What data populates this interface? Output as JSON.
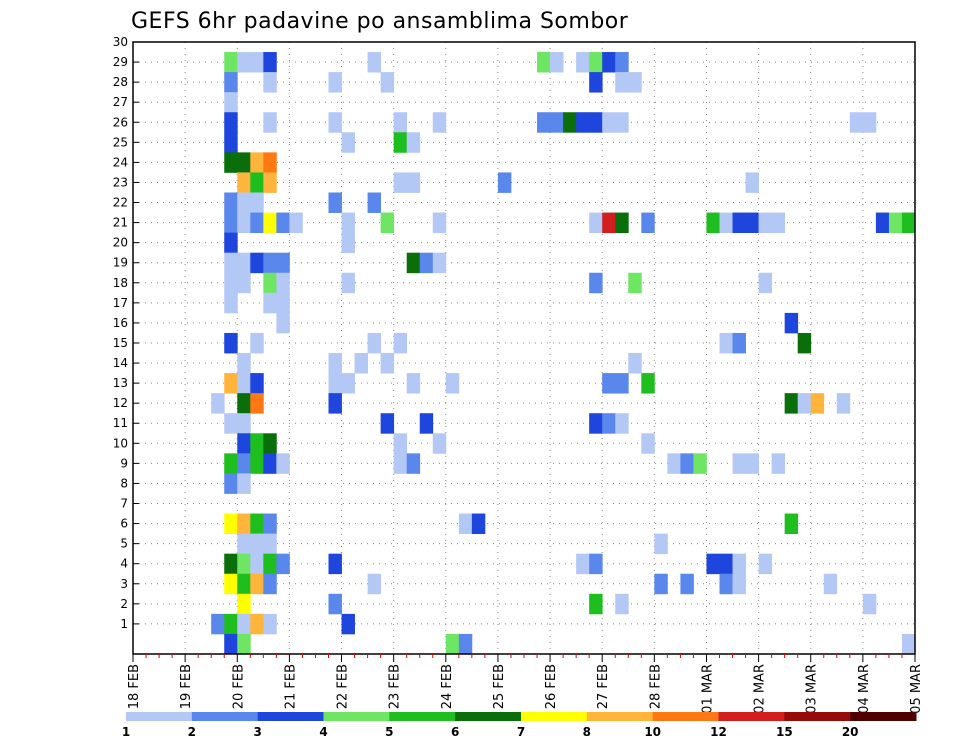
{
  "chart_data": {
    "type": "heatmap",
    "title": "GEFS 6hr padavine po ansamblima Sombor",
    "xlabel": "",
    "ylabel": "",
    "ylim": [
      0,
      30
    ],
    "y_ticks": [
      1,
      2,
      3,
      4,
      5,
      6,
      7,
      8,
      9,
      10,
      11,
      12,
      13,
      14,
      15,
      16,
      17,
      18,
      19,
      20,
      21,
      22,
      23,
      24,
      25,
      26,
      27,
      28,
      29,
      30
    ],
    "x_range_steps": [
      0,
      60
    ],
    "x_date_labels": [
      "18 FEB",
      "19 FEB",
      "20 FEB",
      "21 FEB",
      "22 FEB",
      "23 FEB",
      "24 FEB",
      "25 FEB",
      "26 FEB",
      "27 FEB",
      "28 FEB",
      "01 MAR",
      "02 MAR",
      "03 MAR",
      "04 MAR",
      "05 MAR"
    ],
    "colorbar": {
      "bounds": [
        "1",
        "2",
        "3",
        "4",
        "5",
        "6",
        "7",
        "8",
        "10",
        "12",
        "15",
        "20"
      ],
      "colors": [
        "#b4c8f5",
        "#5a87eb",
        "#1e46dc",
        "#6ee664",
        "#1ebe1e",
        "#0a6e0a",
        "#ffff00",
        "#ffb43c",
        "#ff7814",
        "#d21e1e",
        "#960a0a",
        "#500000"
      ]
    },
    "legend_note": "cells: [x step (6h, 0 = 18 FEB 00z), y member, color class index 1-12]",
    "cells": [
      [
        7,
        29,
        4
      ],
      [
        8,
        29,
        1
      ],
      [
        9,
        29,
        1
      ],
      [
        10,
        29,
        3
      ],
      [
        18,
        29,
        1
      ],
      [
        31,
        29,
        4
      ],
      [
        32,
        29,
        1
      ],
      [
        34,
        29,
        1
      ],
      [
        35,
        29,
        4
      ],
      [
        36,
        29,
        3
      ],
      [
        37,
        29,
        2
      ],
      [
        7,
        28,
        2
      ],
      [
        10,
        28,
        1
      ],
      [
        15,
        28,
        1
      ],
      [
        19,
        28,
        1
      ],
      [
        35,
        28,
        3
      ],
      [
        37,
        28,
        1
      ],
      [
        38,
        28,
        1
      ],
      [
        7,
        27,
        1
      ],
      [
        7,
        26,
        3
      ],
      [
        10,
        26,
        1
      ],
      [
        15,
        26,
        1
      ],
      [
        20,
        26,
        1
      ],
      [
        23,
        26,
        1
      ],
      [
        31,
        26,
        2
      ],
      [
        32,
        26,
        2
      ],
      [
        33,
        26,
        6
      ],
      [
        34,
        26,
        3
      ],
      [
        35,
        26,
        3
      ],
      [
        36,
        26,
        1
      ],
      [
        37,
        26,
        1
      ],
      [
        55,
        26,
        1
      ],
      [
        56,
        26,
        1
      ],
      [
        7,
        25,
        3
      ],
      [
        16,
        25,
        1
      ],
      [
        20,
        25,
        5
      ],
      [
        21,
        25,
        1
      ],
      [
        7,
        24,
        6
      ],
      [
        8,
        24,
        6
      ],
      [
        9,
        24,
        8
      ],
      [
        10,
        24,
        9
      ],
      [
        8,
        23,
        8
      ],
      [
        9,
        23,
        5
      ],
      [
        10,
        23,
        8
      ],
      [
        20,
        23,
        1
      ],
      [
        21,
        23,
        1
      ],
      [
        28,
        23,
        2
      ],
      [
        47,
        23,
        1
      ],
      [
        7,
        22,
        2
      ],
      [
        8,
        22,
        1
      ],
      [
        9,
        22,
        1
      ],
      [
        15,
        22,
        2
      ],
      [
        18,
        22,
        2
      ],
      [
        7,
        21,
        2
      ],
      [
        8,
        21,
        1
      ],
      [
        9,
        21,
        2
      ],
      [
        10,
        21,
        7
      ],
      [
        11,
        21,
        2
      ],
      [
        12,
        21,
        1
      ],
      [
        16,
        21,
        1
      ],
      [
        19,
        21,
        4
      ],
      [
        23,
        21,
        1
      ],
      [
        35,
        21,
        1
      ],
      [
        36,
        21,
        10
      ],
      [
        37,
        21,
        6
      ],
      [
        39,
        21,
        2
      ],
      [
        44,
        21,
        5
      ],
      [
        45,
        21,
        1
      ],
      [
        46,
        21,
        3
      ],
      [
        47,
        21,
        3
      ],
      [
        48,
        21,
        1
      ],
      [
        49,
        21,
        1
      ],
      [
        57,
        21,
        3
      ],
      [
        58,
        21,
        4
      ],
      [
        59,
        21,
        5
      ],
      [
        7,
        20,
        3
      ],
      [
        16,
        20,
        1
      ],
      [
        7,
        19,
        1
      ],
      [
        8,
        19,
        1
      ],
      [
        9,
        19,
        3
      ],
      [
        10,
        19,
        2
      ],
      [
        11,
        19,
        2
      ],
      [
        21,
        19,
        6
      ],
      [
        22,
        19,
        2
      ],
      [
        23,
        19,
        1
      ],
      [
        7,
        18,
        1
      ],
      [
        8,
        18,
        1
      ],
      [
        10,
        18,
        4
      ],
      [
        11,
        18,
        1
      ],
      [
        16,
        18,
        1
      ],
      [
        35,
        18,
        2
      ],
      [
        38,
        18,
        4
      ],
      [
        48,
        18,
        1
      ],
      [
        7,
        17,
        1
      ],
      [
        10,
        17,
        1
      ],
      [
        11,
        17,
        1
      ],
      [
        11,
        16,
        1
      ],
      [
        50,
        16,
        3
      ],
      [
        7,
        15,
        3
      ],
      [
        9,
        15,
        1
      ],
      [
        18,
        15,
        1
      ],
      [
        20,
        15,
        1
      ],
      [
        45,
        15,
        1
      ],
      [
        46,
        15,
        2
      ],
      [
        51,
        15,
        6
      ],
      [
        8,
        14,
        1
      ],
      [
        15,
        14,
        1
      ],
      [
        17,
        14,
        1
      ],
      [
        19,
        14,
        1
      ],
      [
        38,
        14,
        1
      ],
      [
        7,
        13,
        8
      ],
      [
        8,
        13,
        1
      ],
      [
        9,
        13,
        3
      ],
      [
        15,
        13,
        1
      ],
      [
        16,
        13,
        1
      ],
      [
        21,
        13,
        1
      ],
      [
        24,
        13,
        1
      ],
      [
        36,
        13,
        2
      ],
      [
        37,
        13,
        2
      ],
      [
        39,
        13,
        5
      ],
      [
        6,
        12,
        1
      ],
      [
        8,
        12,
        6
      ],
      [
        9,
        12,
        9
      ],
      [
        15,
        12,
        3
      ],
      [
        50,
        12,
        6
      ],
      [
        51,
        12,
        1
      ],
      [
        52,
        12,
        8
      ],
      [
        54,
        12,
        1
      ],
      [
        7,
        11,
        1
      ],
      [
        8,
        11,
        1
      ],
      [
        19,
        11,
        3
      ],
      [
        22,
        11,
        3
      ],
      [
        35,
        11,
        3
      ],
      [
        36,
        11,
        2
      ],
      [
        37,
        11,
        1
      ],
      [
        8,
        10,
        3
      ],
      [
        9,
        10,
        5
      ],
      [
        10,
        10,
        6
      ],
      [
        20,
        10,
        1
      ],
      [
        23,
        10,
        1
      ],
      [
        39,
        10,
        1
      ],
      [
        7,
        9,
        5
      ],
      [
        8,
        9,
        2
      ],
      [
        9,
        9,
        5
      ],
      [
        10,
        9,
        3
      ],
      [
        11,
        9,
        1
      ],
      [
        20,
        9,
        1
      ],
      [
        21,
        9,
        2
      ],
      [
        41,
        9,
        1
      ],
      [
        42,
        9,
        2
      ],
      [
        43,
        9,
        4
      ],
      [
        46,
        9,
        1
      ],
      [
        47,
        9,
        1
      ],
      [
        49,
        9,
        1
      ],
      [
        7,
        8,
        2
      ],
      [
        8,
        8,
        1
      ],
      [
        7,
        6,
        7
      ],
      [
        8,
        6,
        8
      ],
      [
        9,
        6,
        5
      ],
      [
        10,
        6,
        2
      ],
      [
        25,
        6,
        1
      ],
      [
        26,
        6,
        3
      ],
      [
        50,
        6,
        5
      ],
      [
        8,
        5,
        1
      ],
      [
        9,
        5,
        1
      ],
      [
        10,
        5,
        1
      ],
      [
        40,
        5,
        1
      ],
      [
        7,
        4,
        6
      ],
      [
        8,
        4,
        4
      ],
      [
        9,
        4,
        1
      ],
      [
        10,
        4,
        5
      ],
      [
        11,
        4,
        2
      ],
      [
        15,
        4,
        3
      ],
      [
        34,
        4,
        1
      ],
      [
        35,
        4,
        2
      ],
      [
        44,
        4,
        3
      ],
      [
        45,
        4,
        3
      ],
      [
        46,
        4,
        1
      ],
      [
        48,
        4,
        1
      ],
      [
        7,
        3,
        7
      ],
      [
        8,
        3,
        5
      ],
      [
        9,
        3,
        8
      ],
      [
        10,
        3,
        2
      ],
      [
        18,
        3,
        1
      ],
      [
        40,
        3,
        2
      ],
      [
        42,
        3,
        2
      ],
      [
        45,
        3,
        2
      ],
      [
        46,
        3,
        1
      ],
      [
        53,
        3,
        1
      ],
      [
        8,
        2,
        7
      ],
      [
        15,
        2,
        2
      ],
      [
        35,
        2,
        5
      ],
      [
        37,
        2,
        1
      ],
      [
        56,
        2,
        1
      ],
      [
        6,
        1,
        2
      ],
      [
        7,
        1,
        5
      ],
      [
        8,
        1,
        1
      ],
      [
        9,
        1,
        8
      ],
      [
        10,
        1,
        1
      ],
      [
        16,
        1,
        3
      ],
      [
        7,
        0,
        3
      ],
      [
        8,
        0,
        4
      ],
      [
        24,
        0,
        4
      ],
      [
        25,
        0,
        2
      ],
      [
        59,
        0,
        1
      ]
    ]
  }
}
